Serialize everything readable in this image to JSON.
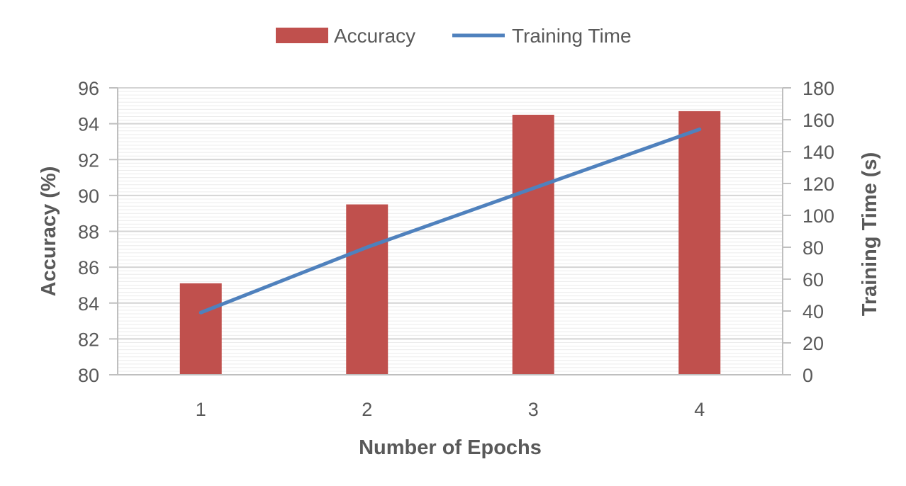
{
  "chart_data": {
    "type": "bar",
    "x": [
      1,
      2,
      3,
      4
    ],
    "xlabel": "Number of Epochs",
    "series": [
      {
        "name": "Accuracy",
        "type": "bar",
        "axis": "left",
        "values": [
          85.1,
          89.5,
          94.5,
          94.7
        ]
      },
      {
        "name": "Training Time",
        "type": "line",
        "axis": "right",
        "values": [
          39,
          80,
          117,
          154
        ]
      }
    ],
    "y_left": {
      "label": "Accuracy (%)",
      "ylim": [
        80,
        96
      ],
      "ticks": [
        80,
        82,
        84,
        86,
        88,
        90,
        92,
        94,
        96
      ]
    },
    "y_right": {
      "label": "Training Time (s)",
      "ylim": [
        0,
        180
      ],
      "ticks": [
        0,
        20,
        40,
        60,
        80,
        100,
        120,
        140,
        160,
        180
      ]
    },
    "grid": true,
    "legend_position": "top-center",
    "colors": {
      "Accuracy": "#c0504d",
      "Training Time": "#4f81bd",
      "grid": "#d9d9d9",
      "axis": "#bfbfbf",
      "text": "#595959"
    }
  }
}
